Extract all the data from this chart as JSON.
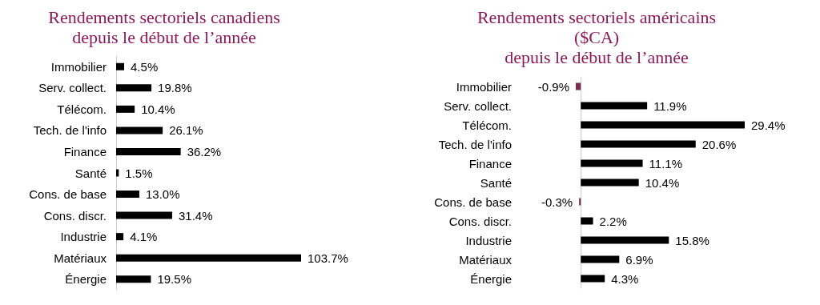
{
  "chart_data": [
    {
      "type": "bar",
      "orientation": "horizontal",
      "title": "Rendements sectoriels canadiens\ndepuis le début de l’année",
      "categories": [
        "Immobilier",
        "Serv. collect.",
        "Télécom.",
        "Tech. de l'info",
        "Finance",
        "Santé",
        "Cons. de base",
        "Cons. discr.",
        "Industrie",
        "Matériaux",
        "Énergie"
      ],
      "values": [
        4.5,
        19.8,
        10.4,
        26.1,
        36.2,
        1.5,
        13.0,
        31.4,
        4.1,
        103.7,
        19.5
      ],
      "colors": [
        "#000000",
        "#000000",
        "#000000",
        "#000000",
        "#000000",
        "#000000",
        "#000000",
        "#000000",
        "#000000",
        "#000000",
        "#000000"
      ],
      "value_labels": [
        "4.5%",
        "19.8%",
        "10.4%",
        "26.1%",
        "36.2%",
        "1.5%",
        "13.0%",
        "31.4%",
        "4.1%",
        "103.7%",
        "19.5%"
      ]
    },
    {
      "type": "bar",
      "orientation": "horizontal",
      "title": "Rendements sectoriels américains\n($CA)\ndepuis le début de l’année",
      "categories": [
        "Immobilier",
        "Serv. collect.",
        "Télécom.",
        "Tech. de l'info",
        "Finance",
        "Santé",
        "Cons. de base",
        "Cons. discr.",
        "Industrie",
        "Matériaux",
        "Énergie"
      ],
      "values": [
        -0.9,
        11.9,
        29.4,
        20.6,
        11.1,
        10.4,
        -0.3,
        2.2,
        15.8,
        6.9,
        4.3
      ],
      "colors": [
        "#7b2c4c",
        "#000000",
        "#000000",
        "#000000",
        "#000000",
        "#000000",
        "#7b2c4c",
        "#000000",
        "#000000",
        "#000000",
        "#000000"
      ],
      "value_labels": [
        "-0.9%",
        "11.9%",
        "29.4%",
        "20.6%",
        "11.1%",
        "10.4%",
        "-0.3%",
        "2.2%",
        "15.8%",
        "6.9%",
        "4.3%"
      ]
    }
  ]
}
